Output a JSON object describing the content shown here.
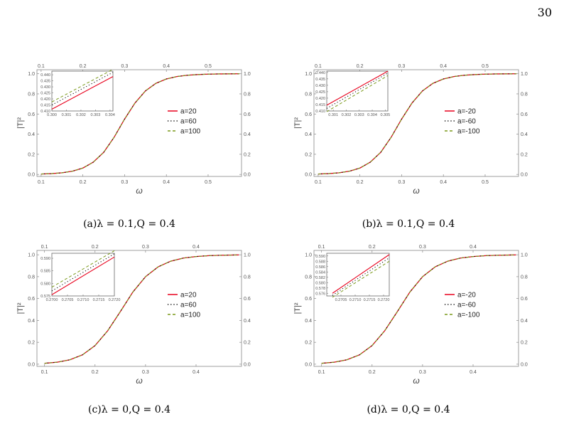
{
  "page_number": "30",
  "chart_data": [
    {
      "type": "line",
      "caption": "(a)λ = 0.1,Q = 0.4",
      "xlabel": "ω",
      "ylabel": "|T|²",
      "xlim": [
        0.09,
        0.58
      ],
      "ylim": [
        -0.02,
        1.04
      ],
      "xticks": [
        0.1,
        0.2,
        0.3,
        0.4,
        0.5
      ],
      "yticks": [
        0.0,
        0.2,
        0.4,
        0.6,
        0.8,
        1.0
      ],
      "legend_position": "center-right",
      "series": [
        {
          "name": "a=20",
          "style": "solid",
          "color": "#e8001c",
          "x": [
            0.1,
            0.125,
            0.15,
            0.175,
            0.2,
            0.225,
            0.25,
            0.275,
            0.3,
            0.325,
            0.35,
            0.375,
            0.4,
            0.425,
            0.45,
            0.475,
            0.5,
            0.525,
            0.55,
            0.575
          ],
          "y": [
            0.004,
            0.008,
            0.016,
            0.032,
            0.063,
            0.122,
            0.22,
            0.37,
            0.55,
            0.71,
            0.83,
            0.905,
            0.948,
            0.972,
            0.985,
            0.992,
            0.996,
            0.998,
            0.999,
            1.0
          ]
        },
        {
          "name": "a=60",
          "style": "dotted",
          "color": "#000000",
          "x": [
            0.1,
            0.125,
            0.15,
            0.175,
            0.2,
            0.225,
            0.25,
            0.275,
            0.3,
            0.325,
            0.35,
            0.375,
            0.4,
            0.425,
            0.45,
            0.475,
            0.5,
            0.525,
            0.55,
            0.575
          ],
          "y": [
            0.004,
            0.008,
            0.016,
            0.032,
            0.063,
            0.122,
            0.22,
            0.37,
            0.55,
            0.71,
            0.83,
            0.905,
            0.948,
            0.972,
            0.985,
            0.992,
            0.996,
            0.998,
            0.999,
            1.0
          ]
        },
        {
          "name": "a=100",
          "style": "dashed",
          "color": "#7a9a1a",
          "x": [
            0.1,
            0.125,
            0.15,
            0.175,
            0.2,
            0.225,
            0.25,
            0.275,
            0.3,
            0.325,
            0.35,
            0.375,
            0.4,
            0.425,
            0.45,
            0.475,
            0.5,
            0.525,
            0.55,
            0.575
          ],
          "y": [
            0.004,
            0.008,
            0.016,
            0.032,
            0.063,
            0.122,
            0.22,
            0.37,
            0.55,
            0.71,
            0.83,
            0.905,
            0.948,
            0.972,
            0.985,
            0.992,
            0.996,
            0.998,
            0.999,
            1.0
          ]
        }
      ],
      "inset": {
        "xlim": [
          0.3,
          0.3042
        ],
        "ylim": [
          0.41,
          0.443
        ],
        "xticks": [
          0.3,
          0.301,
          0.302,
          0.303,
          0.304
        ],
        "xtick_labels": [
          "0.300",
          "0.301",
          "0.302",
          "0.303",
          "0.304"
        ],
        "yticks": [
          0.41,
          0.415,
          0.42,
          0.425,
          0.43,
          0.435,
          0.44
        ],
        "ytick_labels": [
          "0.410",
          "0.415",
          "0.420",
          "0.425",
          "0.430",
          "0.435",
          "0.440"
        ],
        "lines": [
          {
            "color": "#e8001c",
            "style": "solid",
            "x": [
              0.3,
              0.3042
            ],
            "y": [
              0.4115,
              0.4385
            ]
          },
          {
            "color": "#000000",
            "style": "dotted",
            "x": [
              0.3,
              0.3042
            ],
            "y": [
              0.415,
              0.442
            ]
          },
          {
            "color": "#7a9a1a",
            "style": "dashed",
            "x": [
              0.3,
              0.3042
            ],
            "y": [
              0.4175,
              0.4445
            ]
          }
        ]
      }
    },
    {
      "type": "line",
      "caption": "(b)λ = 0.1,Q = 0.4",
      "xlabel": "ω",
      "ylabel": "|T|²",
      "xlim": [
        0.09,
        0.58
      ],
      "ylim": [
        -0.02,
        1.04
      ],
      "xticks": [
        0.1,
        0.2,
        0.3,
        0.4,
        0.5
      ],
      "yticks": [
        0.0,
        0.2,
        0.4,
        0.6,
        0.8,
        1.0
      ],
      "legend_position": "center-right",
      "series": [
        {
          "name": "a=-20",
          "style": "solid",
          "color": "#e8001c",
          "x": [
            0.1,
            0.125,
            0.15,
            0.175,
            0.2,
            0.225,
            0.25,
            0.275,
            0.3,
            0.325,
            0.35,
            0.375,
            0.4,
            0.425,
            0.45,
            0.475,
            0.5,
            0.525,
            0.55,
            0.575
          ],
          "y": [
            0.004,
            0.008,
            0.016,
            0.032,
            0.063,
            0.122,
            0.22,
            0.37,
            0.55,
            0.71,
            0.83,
            0.905,
            0.948,
            0.972,
            0.985,
            0.992,
            0.996,
            0.998,
            0.999,
            1.0
          ]
        },
        {
          "name": "a=-60",
          "style": "dotted",
          "color": "#000000",
          "x": [
            0.1,
            0.125,
            0.15,
            0.175,
            0.2,
            0.225,
            0.25,
            0.275,
            0.3,
            0.325,
            0.35,
            0.375,
            0.4,
            0.425,
            0.45,
            0.475,
            0.5,
            0.525,
            0.55,
            0.575
          ],
          "y": [
            0.004,
            0.008,
            0.016,
            0.032,
            0.063,
            0.122,
            0.22,
            0.37,
            0.55,
            0.71,
            0.83,
            0.905,
            0.948,
            0.972,
            0.985,
            0.992,
            0.996,
            0.998,
            0.999,
            1.0
          ]
        },
        {
          "name": "a=-100",
          "style": "dashed",
          "color": "#7a9a1a",
          "x": [
            0.1,
            0.125,
            0.15,
            0.175,
            0.2,
            0.225,
            0.25,
            0.275,
            0.3,
            0.325,
            0.35,
            0.375,
            0.4,
            0.425,
            0.45,
            0.475,
            0.5,
            0.525,
            0.55,
            0.575
          ],
          "y": [
            0.004,
            0.008,
            0.016,
            0.032,
            0.063,
            0.122,
            0.22,
            0.37,
            0.55,
            0.71,
            0.83,
            0.905,
            0.948,
            0.972,
            0.985,
            0.992,
            0.996,
            0.998,
            0.999,
            1.0
          ]
        }
      ],
      "inset": {
        "xlim": [
          0.3005,
          0.3052
        ],
        "ylim": [
          0.41,
          0.441
        ],
        "xticks": [
          0.301,
          0.302,
          0.303,
          0.304,
          0.305
        ],
        "xtick_labels": [
          "0.301",
          "0.302",
          "0.303",
          "0.304",
          "0.305"
        ],
        "yticks": [
          0.41,
          0.415,
          0.42,
          0.425,
          0.43,
          0.435,
          0.44
        ],
        "ytick_labels": [
          "0.410",
          "0.415",
          "0.420",
          "0.425",
          "0.430",
          "0.435",
          "0.440"
        ],
        "lines": [
          {
            "color": "#e8001c",
            "style": "solid",
            "x": [
              0.3005,
              0.3052
            ],
            "y": [
              0.4145,
              0.441
            ]
          },
          {
            "color": "#000000",
            "style": "dotted",
            "x": [
              0.3005,
              0.3052
            ],
            "y": [
              0.412,
              0.4395
            ]
          },
          {
            "color": "#7a9a1a",
            "style": "dashed",
            "x": [
              0.3005,
              0.3052
            ],
            "y": [
              0.4095,
              0.4375
            ]
          }
        ]
      }
    },
    {
      "type": "line",
      "caption": "(c)λ = 0,Q = 0.4",
      "xlabel": "ω",
      "ylabel": "|T|²",
      "xlim": [
        0.085,
        0.49
      ],
      "ylim": [
        -0.02,
        1.04
      ],
      "xticks": [
        0.1,
        0.2,
        0.3,
        0.4
      ],
      "yticks": [
        0.0,
        0.2,
        0.4,
        0.6,
        0.8,
        1.0
      ],
      "legend_position": "center-right",
      "series": [
        {
          "name": "a=20",
          "style": "solid",
          "color": "#e8001c",
          "x": [
            0.1,
            0.125,
            0.15,
            0.175,
            0.2,
            0.225,
            0.25,
            0.275,
            0.3,
            0.325,
            0.35,
            0.375,
            0.4,
            0.425,
            0.45,
            0.475,
            0.485
          ],
          "y": [
            0.008,
            0.018,
            0.04,
            0.085,
            0.17,
            0.305,
            0.48,
            0.66,
            0.8,
            0.89,
            0.942,
            0.97,
            0.984,
            0.992,
            0.996,
            0.998,
            0.999
          ]
        },
        {
          "name": "a=60",
          "style": "dotted",
          "color": "#000000",
          "x": [
            0.1,
            0.125,
            0.15,
            0.175,
            0.2,
            0.225,
            0.25,
            0.275,
            0.3,
            0.325,
            0.35,
            0.375,
            0.4,
            0.425,
            0.45,
            0.475,
            0.485
          ],
          "y": [
            0.008,
            0.018,
            0.04,
            0.085,
            0.17,
            0.305,
            0.48,
            0.66,
            0.8,
            0.89,
            0.942,
            0.97,
            0.984,
            0.992,
            0.996,
            0.998,
            0.999
          ]
        },
        {
          "name": "a=100",
          "style": "dashed",
          "color": "#7a9a1a",
          "x": [
            0.1,
            0.125,
            0.15,
            0.175,
            0.2,
            0.225,
            0.25,
            0.275,
            0.3,
            0.325,
            0.35,
            0.375,
            0.4,
            0.425,
            0.45,
            0.475,
            0.485
          ],
          "y": [
            0.008,
            0.018,
            0.04,
            0.085,
            0.17,
            0.305,
            0.48,
            0.66,
            0.8,
            0.89,
            0.942,
            0.97,
            0.984,
            0.992,
            0.996,
            0.998,
            0.999
          ]
        }
      ],
      "inset": {
        "xlim": [
          0.27,
          0.272
        ],
        "ylim": [
          0.575,
          0.592
        ],
        "xticks": [
          0.27,
          0.2705,
          0.271,
          0.2715,
          0.272
        ],
        "xtick_labels": [
          "0.2700",
          "0.2705",
          "0.2710",
          "0.2715",
          "0.2720"
        ],
        "yticks": [
          0.575,
          0.58,
          0.585,
          0.59
        ],
        "ytick_labels": [
          "0.575",
          "0.580",
          "0.585",
          "0.590"
        ],
        "lines": [
          {
            "color": "#e8001c",
            "style": "solid",
            "x": [
              0.27,
              0.272
            ],
            "y": [
              0.5755,
              0.5905
            ]
          },
          {
            "color": "#000000",
            "style": "dotted",
            "x": [
              0.27,
              0.272
            ],
            "y": [
              0.577,
              0.5918
            ]
          },
          {
            "color": "#7a9a1a",
            "style": "dashed",
            "x": [
              0.27,
              0.272
            ],
            "y": [
              0.5785,
              0.593
            ]
          }
        ]
      }
    },
    {
      "type": "line",
      "caption": "(d)λ = 0,Q = 0.4",
      "xlabel": "ω",
      "ylabel": "|T|²",
      "xlim": [
        0.085,
        0.49
      ],
      "ylim": [
        -0.02,
        1.04
      ],
      "xticks": [
        0.1,
        0.2,
        0.3,
        0.4
      ],
      "yticks": [
        0.0,
        0.2,
        0.4,
        0.6,
        0.8,
        1.0
      ],
      "legend_position": "center-right",
      "series": [
        {
          "name": "a=-20",
          "style": "solid",
          "color": "#e8001c",
          "x": [
            0.1,
            0.125,
            0.15,
            0.175,
            0.2,
            0.225,
            0.25,
            0.275,
            0.3,
            0.325,
            0.35,
            0.375,
            0.4,
            0.425,
            0.45,
            0.475,
            0.485
          ],
          "y": [
            0.008,
            0.018,
            0.04,
            0.085,
            0.17,
            0.305,
            0.48,
            0.66,
            0.8,
            0.89,
            0.942,
            0.97,
            0.984,
            0.992,
            0.996,
            0.998,
            0.999
          ]
        },
        {
          "name": "a=-60",
          "style": "dotted",
          "color": "#000000",
          "x": [
            0.1,
            0.125,
            0.15,
            0.175,
            0.2,
            0.225,
            0.25,
            0.275,
            0.3,
            0.325,
            0.35,
            0.375,
            0.4,
            0.425,
            0.45,
            0.475,
            0.485
          ],
          "y": [
            0.008,
            0.018,
            0.04,
            0.085,
            0.17,
            0.305,
            0.48,
            0.66,
            0.8,
            0.89,
            0.942,
            0.97,
            0.984,
            0.992,
            0.996,
            0.998,
            0.999
          ]
        },
        {
          "name": "a=-100",
          "style": "dashed",
          "color": "#7a9a1a",
          "x": [
            0.1,
            0.125,
            0.15,
            0.175,
            0.2,
            0.225,
            0.25,
            0.275,
            0.3,
            0.325,
            0.35,
            0.375,
            0.4,
            0.425,
            0.45,
            0.475,
            0.485
          ],
          "y": [
            0.008,
            0.018,
            0.04,
            0.085,
            0.17,
            0.305,
            0.48,
            0.66,
            0.8,
            0.89,
            0.942,
            0.97,
            0.984,
            0.992,
            0.996,
            0.998,
            0.999
          ]
        }
      ],
      "inset": {
        "xlim": [
          0.27,
          0.2722
        ],
        "ylim": [
          0.575,
          0.591
        ],
        "xticks": [
          0.2705,
          0.271,
          0.2715,
          0.272
        ],
        "xtick_labels": [
          "0.2705",
          "0.2710",
          "0.2715",
          "0.2720"
        ],
        "yticks": [
          0.576,
          0.578,
          0.58,
          0.582,
          0.584,
          0.586,
          0.588,
          0.59
        ],
        "ytick_labels": [
          "0.576",
          "0.578",
          "0.580",
          "0.582",
          "0.584",
          "0.586",
          "0.588",
          "0.590"
        ],
        "lines": [
          {
            "color": "#e8001c",
            "style": "solid",
            "x": [
              0.2702,
              0.2722
            ],
            "y": [
              0.576,
              0.5905
            ]
          },
          {
            "color": "#000000",
            "style": "dotted",
            "x": [
              0.2702,
              0.2722
            ],
            "y": [
              0.5752,
              0.5893
            ]
          },
          {
            "color": "#7a9a1a",
            "style": "dashed",
            "x": [
              0.2702,
              0.2722
            ],
            "y": [
              0.5745,
              0.588
            ]
          }
        ]
      }
    }
  ]
}
